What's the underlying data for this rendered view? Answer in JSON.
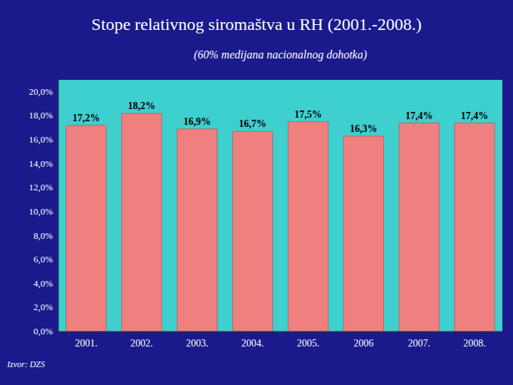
{
  "chart_data": {
    "type": "bar",
    "title": "Stope relativnog siromaštva u RH (2001.-2008.)",
    "subtitle": "(60% medijana nacionalnog dohotka)",
    "annotations": [
      "Izvor: DZS"
    ],
    "categories": [
      "2001.",
      "2002.",
      "2003.",
      "2004.",
      "2005.",
      "2006",
      "2007.",
      "2008."
    ],
    "values": [
      17.2,
      18.2,
      16.9,
      16.7,
      17.5,
      16.3,
      17.4,
      17.4
    ],
    "value_labels": [
      "17,2%",
      "18,2%",
      "16,9%",
      "16,7%",
      "17,5%",
      "16,3%",
      "17,4%",
      "17,4%"
    ],
    "data_labels": true,
    "color": "#F08080",
    "ylim": [
      0,
      21
    ],
    "yticks": [
      {
        "value": 0,
        "label": "0,0%"
      },
      {
        "value": 2,
        "label": "2,0%"
      },
      {
        "value": 4,
        "label": "4,0%"
      },
      {
        "value": 6,
        "label": "6,0%"
      },
      {
        "value": 8,
        "label": "8,0%"
      },
      {
        "value": 10,
        "label": "10,0%"
      },
      {
        "value": 12,
        "label": "12,0%"
      },
      {
        "value": 14,
        "label": "14,0%"
      },
      {
        "value": 16,
        "label": "16,0%"
      },
      {
        "value": 18,
        "label": "18,0%"
      },
      {
        "value": 20,
        "label": "20,0%"
      }
    ],
    "grid": false
  }
}
